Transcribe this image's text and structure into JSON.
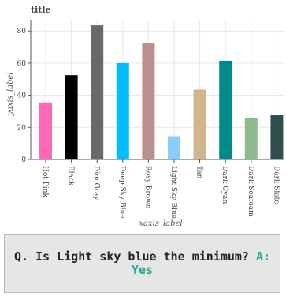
{
  "chart_data": {
    "type": "bar",
    "title": "title",
    "xlabel": "xaxis_label",
    "ylabel": "yaxis_label",
    "ylim": [
      0,
      87
    ],
    "yticks": [
      0,
      20,
      40,
      60,
      80
    ],
    "grid": true,
    "categories": [
      "Hot Pink",
      "Black",
      "Dim Gray",
      "Deep Sky Blue",
      "Rosy Brown",
      "Light Sky Blue",
      "Tan",
      "Dark Cyan",
      "Dark Seafoam",
      "Dark Slate"
    ],
    "values": [
      35.5,
      52.5,
      83.5,
      60,
      72.5,
      14.5,
      43.5,
      61.5,
      26,
      27.5
    ],
    "colors": [
      "#ff69b4",
      "#000000",
      "#696969",
      "#00bfff",
      "#bc8f8f",
      "#87cefa",
      "#d2b48c",
      "#008b8b",
      "#8fbc8f",
      "#2f4f4f"
    ]
  },
  "qa": {
    "question": "Q. Is Light sky blue the minimum?",
    "answer_prefix": "A:",
    "answer": "Yes"
  }
}
